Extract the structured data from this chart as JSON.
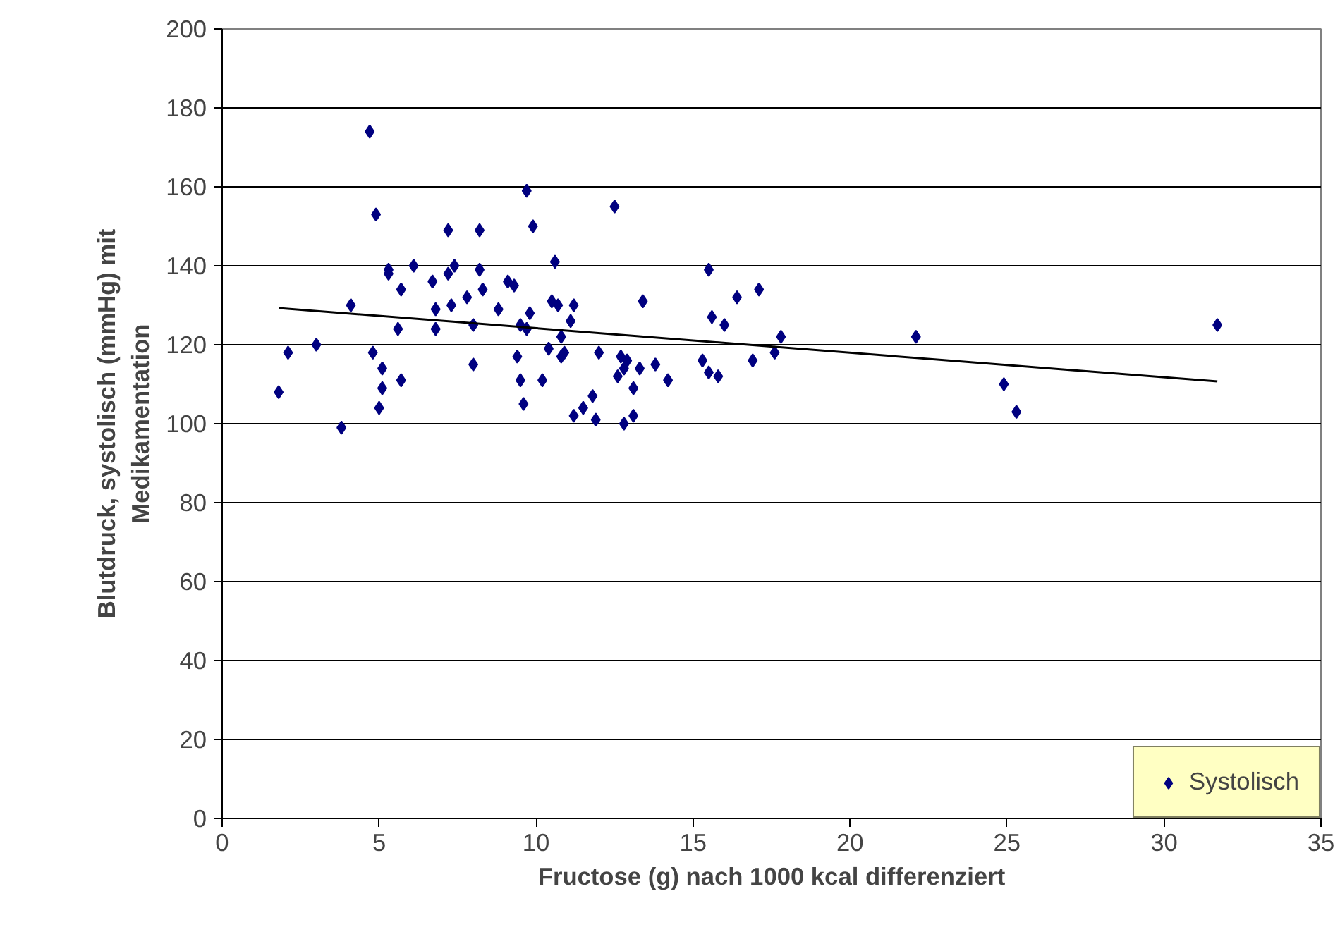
{
  "chart_data": {
    "type": "scatter",
    "xlabel": "Fructose (g) nach 1000 kcal differenziert",
    "ylabel": "Blutdruck, systolisch (mmHg) mit\nMedikamentation",
    "xlim": [
      0,
      35
    ],
    "xticks": [
      0,
      5,
      10,
      15,
      20,
      25,
      30,
      35
    ],
    "ylim": [
      0,
      200
    ],
    "yticks": [
      0,
      20,
      40,
      60,
      80,
      100,
      120,
      140,
      160,
      180,
      200
    ],
    "grid": "y",
    "legend": "bottom right",
    "series": [
      {
        "name": "Systolisch",
        "color": "#000080",
        "marker": "diamond",
        "x": [
          1.8,
          2.1,
          3.0,
          3.8,
          4.1,
          4.7,
          4.8,
          4.9,
          5.0,
          5.1,
          5.1,
          5.3,
          5.3,
          5.6,
          5.7,
          5.7,
          6.1,
          6.7,
          6.8,
          6.8,
          7.2,
          7.2,
          7.3,
          7.4,
          7.8,
          8.0,
          8.0,
          8.2,
          8.2,
          8.3,
          8.8,
          9.1,
          9.3,
          9.4,
          9.5,
          9.5,
          9.6,
          9.7,
          9.7,
          9.8,
          9.9,
          10.2,
          10.4,
          10.5,
          10.6,
          10.7,
          10.8,
          10.8,
          10.9,
          11.1,
          11.2,
          11.2,
          11.5,
          11.8,
          11.9,
          12.0,
          12.5,
          12.6,
          12.7,
          12.8,
          12.8,
          12.9,
          13.1,
          13.1,
          13.3,
          13.4,
          13.8,
          14.2,
          15.3,
          15.5,
          15.5,
          15.6,
          15.8,
          16.0,
          16.4,
          16.9,
          17.1,
          17.6,
          17.8,
          22.1,
          24.9,
          25.3,
          31.7
        ],
        "values": [
          108,
          118,
          120,
          99,
          130,
          174,
          118,
          153,
          104,
          114,
          109,
          139,
          138,
          124,
          111,
          134,
          140,
          136,
          129,
          124,
          149,
          138,
          130,
          140,
          132,
          115,
          125,
          149,
          139,
          134,
          129,
          136,
          135,
          117,
          111,
          125,
          105,
          124,
          159,
          128,
          150,
          111,
          119,
          131,
          141,
          130,
          122,
          117,
          118,
          126,
          130,
          102,
          104,
          107,
          101,
          118,
          155,
          112,
          117,
          100,
          114,
          116,
          102,
          109,
          114,
          131,
          115,
          111,
          116,
          139,
          113,
          127,
          112,
          125,
          132,
          116,
          134,
          118,
          122,
          122,
          110,
          103,
          125
        ]
      },
      {
        "type": "line",
        "marker": "none",
        "color": "#000000",
        "x": [
          1.8,
          31.7
        ],
        "values": [
          129.3,
          110.7
        ]
      }
    ]
  }
}
